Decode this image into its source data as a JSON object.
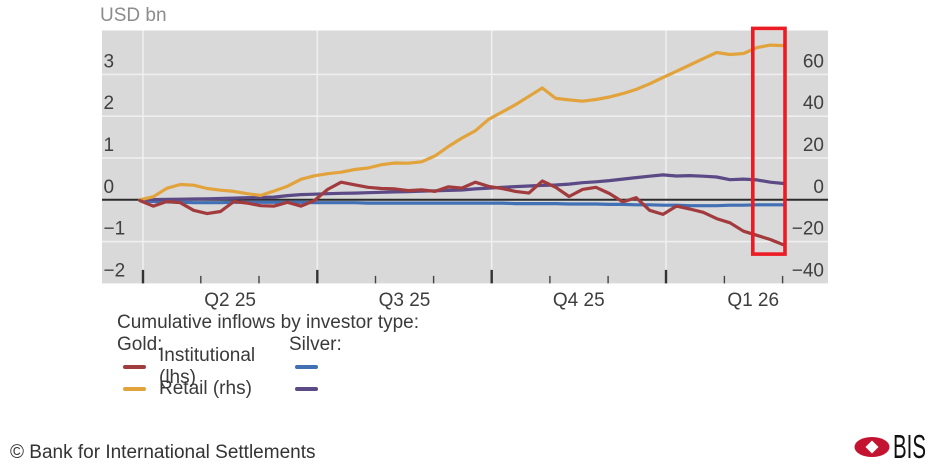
{
  "chart_data": {
    "type": "line",
    "title": "Cumulative inflows by investor type",
    "ylabel": "USD bn",
    "x_axis": {
      "quarter_labels": [
        "Q2 25",
        "Q3 25",
        "Q4 25",
        "Q1 26"
      ],
      "frequency": "weekly",
      "n_points": 49
    },
    "left_axis": {
      "ticks": [
        3,
        2,
        1,
        0,
        -1,
        -2
      ],
      "tick_labels": [
        "3",
        "2",
        "1",
        "0",
        "−1",
        "−2"
      ],
      "range": [
        -2,
        4
      ],
      "unit": "USD bn"
    },
    "right_axis": {
      "ticks": [
        60,
        40,
        20,
        0,
        -20,
        -40
      ],
      "tick_labels": [
        "60",
        "40",
        "20",
        "0",
        "−20",
        "−40"
      ],
      "range": [
        -40,
        80
      ],
      "unit": "USD bn"
    },
    "grid": true,
    "legend_position": "bottom-left",
    "series": [
      {
        "name": "Silver Institutional (lhs)",
        "axis": "lhs",
        "color_key": "silver_institutional",
        "values": [
          -0.02,
          -0.04,
          -0.05,
          -0.06,
          -0.07,
          -0.07,
          -0.07,
          -0.06,
          -0.06,
          -0.06,
          -0.06,
          -0.06,
          -0.06,
          -0.07,
          -0.07,
          -0.07,
          -0.07,
          -0.08,
          -0.08,
          -0.08,
          -0.08,
          -0.08,
          -0.08,
          -0.08,
          -0.08,
          -0.08,
          -0.08,
          -0.08,
          -0.09,
          -0.09,
          -0.09,
          -0.09,
          -0.1,
          -0.1,
          -0.1,
          -0.11,
          -0.11,
          -0.12,
          -0.12,
          -0.13,
          -0.13,
          -0.14,
          -0.14,
          -0.14,
          -0.13,
          -0.13,
          -0.12,
          -0.12,
          -0.12
        ]
      },
      {
        "name": "Silver Retail (rhs)",
        "axis": "rhs",
        "color_key": "silver_retail",
        "values": [
          0.0,
          0.1,
          0.2,
          0.3,
          0.4,
          0.5,
          0.6,
          0.8,
          1.0,
          1.1,
          1.3,
          2.0,
          2.5,
          2.7,
          2.9,
          3.1,
          3.2,
          3.4,
          3.6,
          3.8,
          3.9,
          4.1,
          4.3,
          4.5,
          4.7,
          5.2,
          5.6,
          6.0,
          6.3,
          6.6,
          6.9,
          7.1,
          7.5,
          8.2,
          8.6,
          9.2,
          9.9,
          10.6,
          11.3,
          11.9,
          11.4,
          11.6,
          11.3,
          10.9,
          9.6,
          9.9,
          9.5,
          8.4,
          7.8
        ]
      },
      {
        "name": "Gold Retail (rhs)",
        "axis": "rhs",
        "color_key": "gold_retail",
        "values": [
          0,
          1.5,
          5.5,
          7.3,
          7.0,
          5.4,
          4.6,
          4.0,
          2.9,
          2.1,
          4.2,
          6.5,
          9.8,
          11.5,
          12.5,
          13.2,
          14.5,
          15.2,
          16.8,
          17.6,
          17.5,
          18.2,
          21.0,
          25.5,
          29.5,
          33.0,
          38.5,
          42.0,
          45.5,
          49.5,
          53.5,
          48.5,
          47.8,
          47.2,
          48.0,
          49.2,
          50.8,
          52.8,
          55.5,
          58.5,
          61.5,
          64.5,
          67.5,
          70.5,
          69.5,
          70.0,
          72.8,
          74.0,
          73.8
        ]
      },
      {
        "name": "Gold Institutional (lhs)",
        "axis": "lhs",
        "color_key": "gold_institutional",
        "values": [
          -0.02,
          -0.15,
          -0.04,
          -0.07,
          -0.25,
          -0.33,
          -0.28,
          -0.04,
          -0.08,
          -0.14,
          -0.15,
          -0.06,
          -0.15,
          -0.02,
          0.25,
          0.42,
          0.36,
          0.3,
          0.27,
          0.26,
          0.22,
          0.24,
          0.2,
          0.31,
          0.28,
          0.42,
          0.32,
          0.27,
          0.2,
          0.16,
          0.45,
          0.3,
          0.08,
          0.25,
          0.3,
          0.15,
          -0.05,
          0.05,
          -0.25,
          -0.35,
          -0.15,
          -0.22,
          -0.3,
          -0.45,
          -0.55,
          -0.75,
          -0.85,
          -0.95,
          -1.08
        ]
      }
    ],
    "highlight_box": {
      "week_start": 45.7,
      "week_end": 48.1,
      "lhs_top": 4.1,
      "lhs_bottom": -1.3
    }
  },
  "colors": {
    "gold_institutional": "#A23B3E",
    "gold_retail": "#E2A33C",
    "silver_institutional": "#4170B4",
    "silver_retail": "#5B4A86",
    "highlight": "#EB1C24",
    "panel_bg": "#D9D9D9",
    "grid": "#EFEFEF",
    "zero_line": "#2B2B2B",
    "tick": "#333333",
    "axis_text": "#404040",
    "unit_text": "#8C8C8C",
    "bis_red": "#C41231"
  },
  "legend": {
    "title": "Cumulative inflows by investor type:",
    "gold_label": "Gold:",
    "silver_label": "Silver:",
    "rows": [
      {
        "label": "Institutional (lhs)"
      },
      {
        "label": "Retail (rhs)"
      }
    ]
  },
  "footer": {
    "copyright": "© Bank for International Settlements",
    "logo_text": "BIS"
  }
}
